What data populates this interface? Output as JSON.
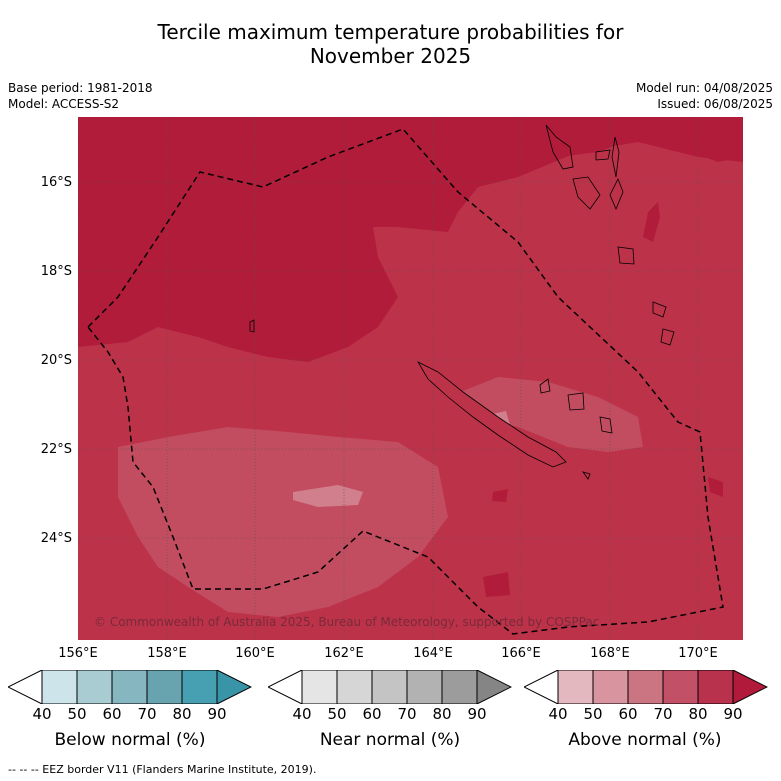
{
  "title_line1": "Tercile maximum temperature probabilities for",
  "title_line2": "November 2025",
  "base_period": "Base period: 1981-2018",
  "model": "Model: ACCESS-S2",
  "model_run": "Model run: 04/08/2025",
  "issued": "Issued: 06/08/2025",
  "copyright": "© Commonwealth of Australia 2025, Bureau of Meteorology, supported by COSPPac",
  "lat_labels": [
    "16°S",
    "18°S",
    "20°S",
    "22°S",
    "24°S"
  ],
  "lon_labels": [
    "156°E",
    "158°E",
    "160°E",
    "162°E",
    "164°E",
    "166°E",
    "168°E",
    "170°E"
  ],
  "colorbars": [
    {
      "label": "Below normal (%)",
      "colors": [
        "#ffffff",
        "#cde5ea",
        "#a9ccd3",
        "#86b6c0",
        "#68a3b0",
        "#47a0b1",
        "#3a94a8"
      ]
    },
    {
      "label": "Near normal (%)",
      "colors": [
        "#ffffff",
        "#e5e5e5",
        "#d6d6d6",
        "#c4c4c4",
        "#b2b2b2",
        "#9c9c9c",
        "#858585"
      ]
    },
    {
      "label": "Above normal (%)",
      "colors": [
        "#ffffff",
        "#e3b8bf",
        "#d9959f",
        "#cc7582",
        "#c25066",
        "#b8324e",
        "#b11a3a"
      ]
    }
  ],
  "tick_values": [
    "40",
    "50",
    "60",
    "70",
    "80",
    "90"
  ],
  "footnote": "--  --  -- EEZ border V11 (Flanders Marine Institute, 2019).",
  "colors": {
    "above_90": "#b01c3a",
    "above_80": "#bc3249",
    "above_70": "#c24d60",
    "above_60": "#d17f8c"
  }
}
